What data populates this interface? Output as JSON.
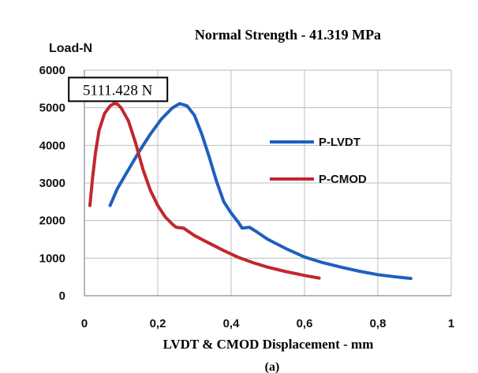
{
  "chart_data": {
    "type": "line",
    "title": "Normal Strength - 41.319 MPa",
    "ylabel": "Load-N",
    "xlabel": "LVDT & CMOD Displacement - mm",
    "caption": "(a)",
    "xlim": [
      0,
      1
    ],
    "ylim": [
      0,
      6000
    ],
    "x_ticks": [
      0,
      0.2,
      0.4,
      0.6,
      0.8,
      1
    ],
    "x_tick_labels": [
      "0",
      "0,2",
      "0,4",
      "0,6",
      "0,8",
      "1"
    ],
    "y_ticks": [
      0,
      1000,
      2000,
      3000,
      4000,
      5000,
      6000
    ],
    "y_tick_labels": [
      "0",
      "1000",
      "2000",
      "3000",
      "4000",
      "5000",
      "6000"
    ],
    "grid": true,
    "legend_position": "right",
    "annotation": {
      "text": "5111.428 N",
      "x": 0.08,
      "y": 5111.428
    },
    "series": [
      {
        "name": "P-LVDT",
        "color": "#1f5fbf",
        "points": [
          [
            0.07,
            2400
          ],
          [
            0.09,
            2850
          ],
          [
            0.12,
            3350
          ],
          [
            0.15,
            3850
          ],
          [
            0.18,
            4300
          ],
          [
            0.21,
            4700
          ],
          [
            0.24,
            5000
          ],
          [
            0.26,
            5110
          ],
          [
            0.28,
            5050
          ],
          [
            0.3,
            4800
          ],
          [
            0.32,
            4300
          ],
          [
            0.34,
            3700
          ],
          [
            0.36,
            3050
          ],
          [
            0.38,
            2500
          ],
          [
            0.4,
            2200
          ],
          [
            0.42,
            1950
          ],
          [
            0.43,
            1800
          ],
          [
            0.45,
            1820
          ],
          [
            0.47,
            1700
          ],
          [
            0.5,
            1500
          ],
          [
            0.55,
            1250
          ],
          [
            0.6,
            1030
          ],
          [
            0.65,
            880
          ],
          [
            0.7,
            760
          ],
          [
            0.75,
            650
          ],
          [
            0.8,
            560
          ],
          [
            0.85,
            500
          ],
          [
            0.89,
            460
          ]
        ]
      },
      {
        "name": "P-CMOD",
        "color": "#c0282d",
        "points": [
          [
            0.015,
            2400
          ],
          [
            0.022,
            3100
          ],
          [
            0.03,
            3800
          ],
          [
            0.04,
            4400
          ],
          [
            0.055,
            4850
          ],
          [
            0.07,
            5050
          ],
          [
            0.08,
            5111
          ],
          [
            0.09,
            5100
          ],
          [
            0.1,
            5000
          ],
          [
            0.12,
            4650
          ],
          [
            0.14,
            4050
          ],
          [
            0.16,
            3350
          ],
          [
            0.18,
            2800
          ],
          [
            0.2,
            2400
          ],
          [
            0.22,
            2100
          ],
          [
            0.24,
            1900
          ],
          [
            0.25,
            1820
          ],
          [
            0.27,
            1800
          ],
          [
            0.3,
            1600
          ],
          [
            0.34,
            1400
          ],
          [
            0.38,
            1200
          ],
          [
            0.42,
            1020
          ],
          [
            0.46,
            880
          ],
          [
            0.5,
            760
          ],
          [
            0.55,
            640
          ],
          [
            0.6,
            540
          ],
          [
            0.64,
            470
          ]
        ]
      }
    ]
  }
}
